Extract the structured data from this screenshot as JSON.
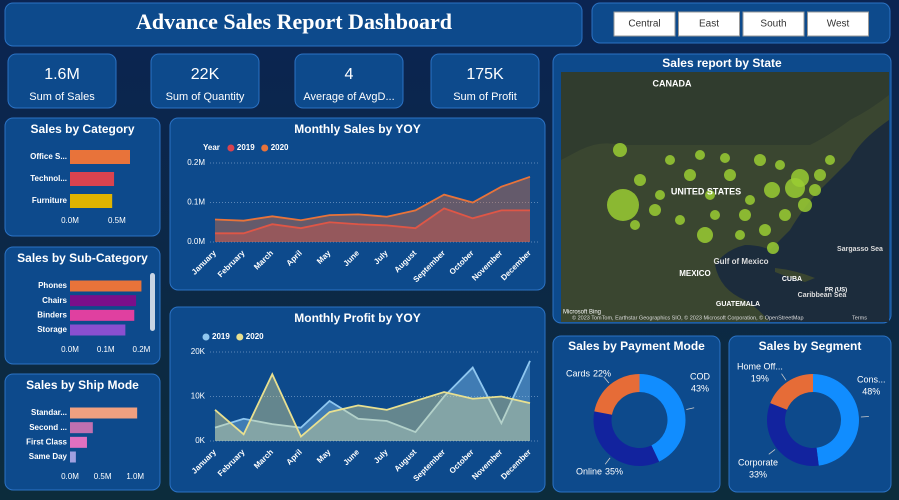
{
  "header": {
    "title": "Advance Sales Report Dashboard"
  },
  "slicer": {
    "items": [
      "Central",
      "East",
      "South",
      "West"
    ]
  },
  "kpis": [
    {
      "value": "1.6M",
      "label": "Sum of Sales"
    },
    {
      "value": "22K",
      "label": "Sum of Quantity"
    },
    {
      "value": "4",
      "label": "Average of AvgD..."
    },
    {
      "value": "175K",
      "label": "Sum of Profit"
    }
  ],
  "map": {
    "title": "Sales report by State",
    "labels": [
      "CANADA",
      "UNITED STATES",
      "MEXICO",
      "Gulf of Mexico",
      "CUBA",
      "Sargasso Sea",
      "GUATEMALA",
      "Caribbean Sea",
      "PR (US)"
    ],
    "logo": "Microsoft Bing",
    "attribution": "© 2023 TomTom, Earthstar Geographics SIO, © 2023 Microsoft Corporation, © OpenStreetMap",
    "terms": "Terms"
  },
  "chart_data": [
    {
      "type": "hbar",
      "title": "Sales by Category",
      "categories": [
        "Office S...",
        "Technol...",
        "Furniture"
      ],
      "values": [
        0.64,
        0.47,
        0.45
      ],
      "colors": [
        "#e8733a",
        "#d9434f",
        "#e0b400"
      ],
      "xlim": [
        0,
        0.8
      ],
      "xticks": [
        {
          "value": 0,
          "label": "0.0M"
        },
        {
          "value": 0.5,
          "label": "0.5M"
        }
      ]
    },
    {
      "type": "hbar",
      "title": "Sales by Sub-Category",
      "categories": [
        "Phones",
        "Chairs",
        "Binders",
        "Storage"
      ],
      "values": [
        0.2,
        0.185,
        0.18,
        0.155
      ],
      "colors": [
        "#e8733a",
        "#7a0f8a",
        "#e040a0",
        "#8a4fd0"
      ],
      "xlim": [
        0,
        0.21
      ],
      "xticks": [
        {
          "value": 0,
          "label": "0.0M"
        },
        {
          "value": 0.1,
          "label": "0.1M"
        },
        {
          "value": 0.2,
          "label": "0.2M"
        }
      ]
    },
    {
      "type": "hbar",
      "title": "Sales by Ship Mode",
      "categories": [
        "Standar...",
        "Second ...",
        "First Class",
        "Same Day"
      ],
      "values": [
        1.03,
        0.35,
        0.26,
        0.09
      ],
      "colors": [
        "#f0a080",
        "#c070b0",
        "#e070c0",
        "#a0a0e0"
      ],
      "xlim": [
        0,
        1.15
      ],
      "xticks": [
        {
          "value": 0,
          "label": "0.0M"
        },
        {
          "value": 0.5,
          "label": "0.5M"
        },
        {
          "value": 1,
          "label": "1.0M"
        }
      ]
    },
    {
      "type": "area",
      "title": "Monthly Sales by YOY",
      "legend_title": "Year",
      "categories": [
        "January",
        "February",
        "March",
        "April",
        "May",
        "June",
        "July",
        "August",
        "September",
        "October",
        "November",
        "December"
      ],
      "series": [
        {
          "name": "2019",
          "color": "#d9434f",
          "values": [
            0.022,
            0.022,
            0.045,
            0.035,
            0.05,
            0.045,
            0.042,
            0.035,
            0.085,
            0.06,
            0.08,
            0.08
          ]
        },
        {
          "name": "2020",
          "color": "#e8733a",
          "values": [
            0.057,
            0.054,
            0.065,
            0.055,
            0.068,
            0.07,
            0.064,
            0.08,
            0.12,
            0.1,
            0.14,
            0.165
          ]
        }
      ],
      "ylim": [
        0,
        0.2
      ],
      "yticks": [
        {
          "value": 0,
          "label": "0.0M"
        },
        {
          "value": 0.1,
          "label": "0.1M"
        },
        {
          "value": 0.2,
          "label": "0.2M"
        }
      ],
      "grid": true
    },
    {
      "type": "area",
      "title": "Monthly Profit by YOY",
      "categories": [
        "January",
        "February",
        "March",
        "April",
        "May",
        "June",
        "July",
        "August",
        "September",
        "October",
        "November",
        "December"
      ],
      "series": [
        {
          "name": "2019",
          "color": "#8fc7f0",
          "values": [
            3000,
            5000,
            3800,
            3000,
            9000,
            5000,
            4500,
            2000,
            10000,
            16500,
            4000,
            18000
          ]
        },
        {
          "name": "2020",
          "color": "#e8e090",
          "values": [
            7000,
            1500,
            15000,
            1000,
            6500,
            8000,
            7000,
            9000,
            11000,
            9500,
            10000,
            8500
          ]
        }
      ],
      "ylim": [
        0,
        20000
      ],
      "yticks": [
        {
          "value": 0,
          "label": "0K"
        },
        {
          "value": 10000,
          "label": "10K"
        },
        {
          "value": 20000,
          "label": "20K"
        }
      ],
      "grid": true
    },
    {
      "type": "donut",
      "title": "Sales by Payment Mode",
      "categories": [
        "COD",
        "Online",
        "Cards"
      ],
      "values": [
        43,
        35,
        22
      ],
      "value_labels": [
        "43%",
        "35%",
        "22%"
      ],
      "colors": [
        "#118dff",
        "#12239e",
        "#e66c37"
      ]
    },
    {
      "type": "donut",
      "title": "Sales by Segment",
      "categories": [
        "Cons...",
        "Corporate",
        "Home Off..."
      ],
      "values": [
        48,
        33,
        19
      ],
      "value_labels": [
        "48%",
        "33%",
        "19%"
      ],
      "colors": [
        "#118dff",
        "#12239e",
        "#e66c37"
      ]
    }
  ]
}
